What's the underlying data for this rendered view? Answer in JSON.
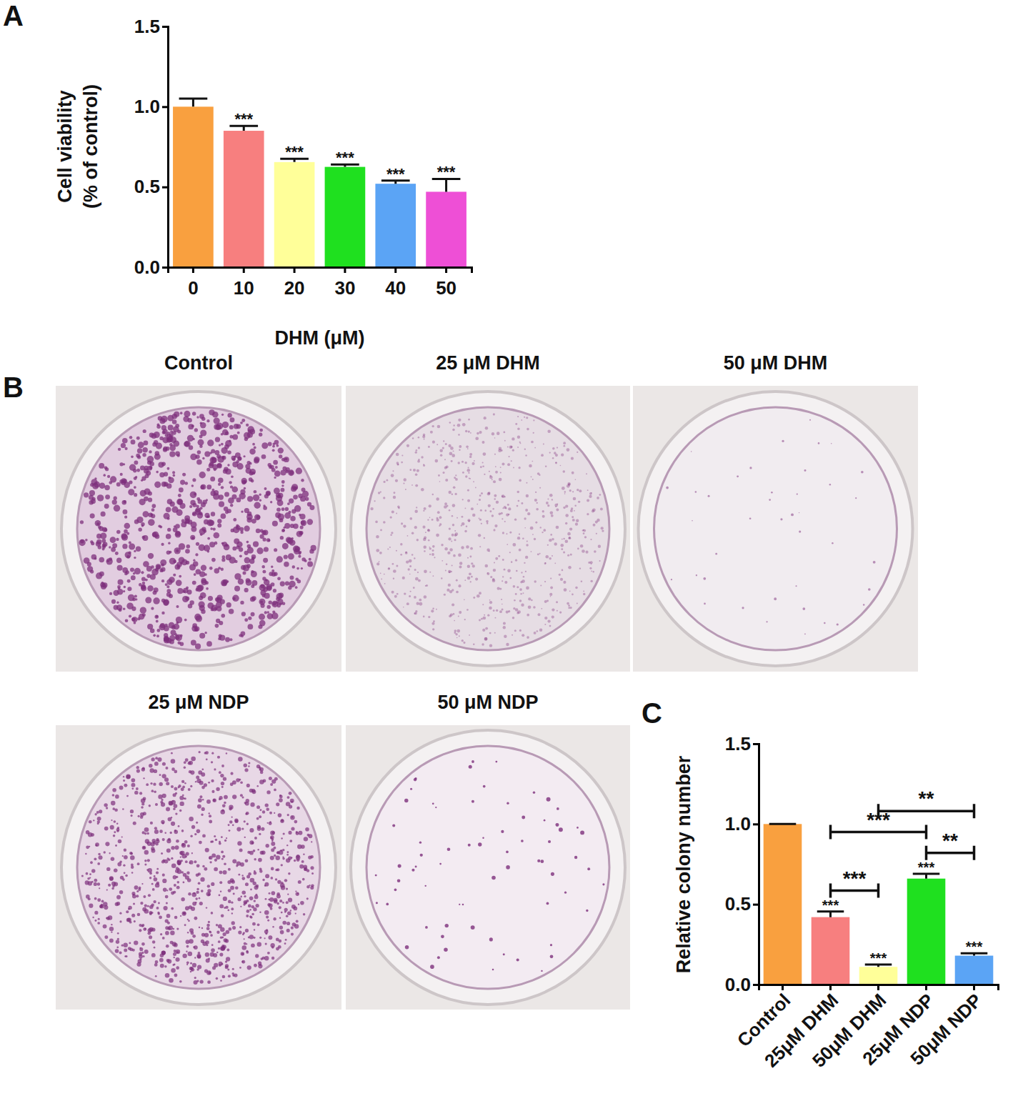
{
  "figure": {
    "panel_labels": [
      "A",
      "B",
      "C"
    ],
    "plates": [
      {
        "label": "Control"
      },
      {
        "label": "25 μM DHM"
      },
      {
        "label": "50 μM DHM"
      },
      {
        "label": "25 μM NDP"
      },
      {
        "label": "50 μM NDP"
      }
    ]
  },
  "chart_data": [
    {
      "type": "bar",
      "xlabel": "DHM (μM)",
      "ylabel": [
        "Cell viability",
        "(% of control)"
      ],
      "categories": [
        "0",
        "10",
        "20",
        "30",
        "40",
        "50"
      ],
      "values": [
        1.0,
        0.85,
        0.655,
        0.625,
        0.52,
        0.47
      ],
      "errors": [
        0.05,
        0.03,
        0.02,
        0.015,
        0.02,
        0.08
      ],
      "significance": [
        null,
        "***",
        "***",
        "***",
        "***",
        "***"
      ],
      "colors": [
        "#f9a03f",
        "#f77f7f",
        "#ffff99",
        "#1fe01f",
        "#5ba4f5",
        "#ee4fd6"
      ],
      "ylim": [
        0,
        1.5
      ],
      "yticks": [
        {
          "value": 0,
          "label": "0.0"
        },
        {
          "value": 0.5,
          "label": "0.5"
        },
        {
          "value": 1,
          "label": "1.0"
        },
        {
          "value": 1.5,
          "label": "1.5"
        }
      ],
      "grid": false
    },
    {
      "type": "bar",
      "ylabel": [
        "Relative colony number"
      ],
      "categories": [
        "Control",
        "25μM DHM",
        "50μM DHM",
        "25μM NDP",
        "50μM NDP"
      ],
      "values": [
        1.0,
        0.42,
        0.11,
        0.66,
        0.18
      ],
      "errors": [
        0,
        0.035,
        0.015,
        0.03,
        0.015
      ],
      "significance": [
        null,
        "***",
        "***",
        "***",
        "***"
      ],
      "brackets": [
        {
          "from": 1,
          "to": 2,
          "label": "***"
        },
        {
          "from": 3,
          "to": 4,
          "label": "**"
        },
        {
          "from": 1,
          "to": 3,
          "label": "***"
        },
        {
          "from": 2,
          "to": 4,
          "label": "**"
        }
      ],
      "colors": [
        "#f9a03f",
        "#f77f7f",
        "#ffff99",
        "#1fe01f",
        "#5ba4f5"
      ],
      "ylim": [
        0,
        1.5
      ],
      "yticks": [
        {
          "value": 0,
          "label": "0.0"
        },
        {
          "value": 0.5,
          "label": "0.5"
        },
        {
          "value": 1,
          "label": "1.0"
        },
        {
          "value": 1.5,
          "label": "1.5"
        }
      ],
      "grid": false
    }
  ]
}
